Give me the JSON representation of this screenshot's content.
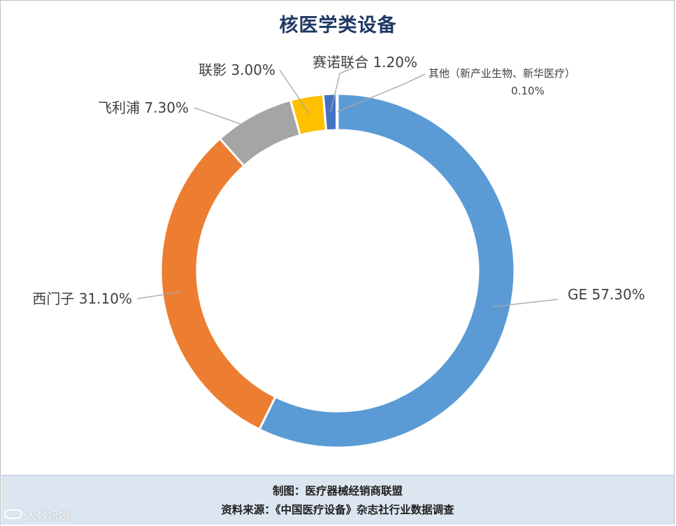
{
  "chart_data": {
    "type": "pie",
    "variant": "donut",
    "title": "核医学类设备",
    "slices": [
      {
        "name": "GE",
        "value": 57.3,
        "label": "GE 57.30%",
        "color": "#5b9bd5"
      },
      {
        "name": "西门子",
        "value": 31.1,
        "label": "西门子 31.10%",
        "color": "#ed7d31"
      },
      {
        "name": "飞利浦",
        "value": 7.3,
        "label": "飞利浦 7.30%",
        "color": "#a5a5a5"
      },
      {
        "name": "联影",
        "value": 3.0,
        "label": "联影 3.00%",
        "color": "#ffc000"
      },
      {
        "name": "赛诺联合",
        "value": 1.2,
        "label": "赛诺联合 1.20%",
        "color": "#4472c4"
      },
      {
        "name": "其他（新产业生物、新华医疗）",
        "value": 0.1,
        "label": "其他（新产业生物、新华医疗）",
        "value_label": "0.10%",
        "color": "#70ad47"
      }
    ]
  },
  "footer": {
    "line1": "制图：医疗器械经销商联盟",
    "line2": "资料来源：《中国医疗设备》杂志社行业数据调查"
  },
  "watermark": "大数跨境"
}
